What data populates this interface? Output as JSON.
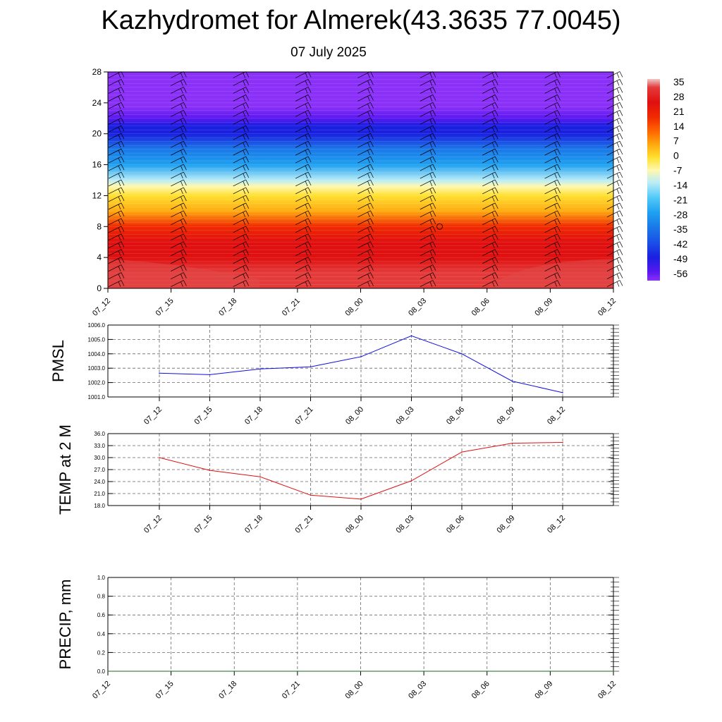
{
  "title": "Kazhydromet for Almerek(43.3635 77.0045)",
  "date": "07 July 2025",
  "colors": {
    "pmsl_line": "#1010e0",
    "temp_line": "#e01010",
    "precip_line": "#1a6b1a",
    "grid": "#666666"
  },
  "chart_data": [
    {
      "type": "heatmap",
      "name": "upper-air-temperature",
      "x_ticks": [
        "07_12",
        "07_15",
        "07_18",
        "07_21",
        "08_00",
        "08_03",
        "08_06",
        "08_09",
        "08_12"
      ],
      "y_ticks": [
        0,
        4,
        8,
        12,
        16,
        20,
        24,
        28
      ],
      "ylim": [
        0,
        28
      ],
      "colorbar_labels": [
        35,
        28,
        21,
        14,
        7,
        0,
        -7,
        -14,
        -21,
        -28,
        -35,
        -42,
        -49,
        -56
      ],
      "color_stops": [
        {
          "v": 35,
          "c": "#f0c8c8"
        },
        {
          "v": 31,
          "c": "#e43a3a"
        },
        {
          "v": 24,
          "c": "#e01010"
        },
        {
          "v": 17,
          "c": "#f02a00"
        },
        {
          "v": 10,
          "c": "#ff6a00"
        },
        {
          "v": 4,
          "c": "#ffaa10"
        },
        {
          "v": -2,
          "c": "#ffe030"
        },
        {
          "v": -8,
          "c": "#fff8b0"
        },
        {
          "v": -14,
          "c": "#b8ecf8"
        },
        {
          "v": -21,
          "c": "#50c8f8"
        },
        {
          "v": -28,
          "c": "#1ea0f0"
        },
        {
          "v": -35,
          "c": "#1a78e8"
        },
        {
          "v": -42,
          "c": "#1a50e8"
        },
        {
          "v": -49,
          "c": "#1a20e0"
        },
        {
          "v": -56,
          "c": "#5a18f0"
        },
        {
          "v": -60,
          "c": "#8a30f8"
        }
      ],
      "profile": [
        {
          "h": 0,
          "t": 33
        },
        {
          "h": 2,
          "t": 29
        },
        {
          "h": 4,
          "t": 25
        },
        {
          "h": 6,
          "t": 21
        },
        {
          "h": 8,
          "t": 15
        },
        {
          "h": 10,
          "t": 7
        },
        {
          "h": 12,
          "t": 0
        },
        {
          "h": 13.2,
          "t": -8
        },
        {
          "h": 14,
          "t": -14
        },
        {
          "h": 16,
          "t": -26
        },
        {
          "h": 18,
          "t": -35
        },
        {
          "h": 20,
          "t": -46
        },
        {
          "h": 21,
          "t": -52
        },
        {
          "h": 22,
          "t": -56
        },
        {
          "h": 23.5,
          "t": -58
        },
        {
          "h": 28,
          "t": -60
        }
      ]
    },
    {
      "type": "line",
      "name": "pmsl",
      "ylabel": "PMSL",
      "categories": [
        "07_12",
        "07_15",
        "07_18",
        "07_21",
        "08_00",
        "08_03",
        "08_06",
        "08_09",
        "08_12"
      ],
      "values": [
        1002.65,
        1002.55,
        1002.95,
        1003.1,
        1003.8,
        1005.25,
        1004.0,
        1002.1,
        1001.3
      ],
      "ylim": [
        1001.0,
        1006.0
      ],
      "y_ticks": [
        "1001.0",
        "1002.0",
        "1003.0",
        "1004.0",
        "1005.0",
        "1006.0"
      ]
    },
    {
      "type": "line",
      "name": "temp-2m",
      "ylabel": "TEMP at 2 M",
      "categories": [
        "07_12",
        "07_15",
        "07_18",
        "07_21",
        "08_00",
        "08_03",
        "08_06",
        "08_09",
        "08_12"
      ],
      "values": [
        30.0,
        26.8,
        25.2,
        20.6,
        19.6,
        24.2,
        31.4,
        33.6,
        33.8
      ],
      "ylim": [
        18.0,
        36.0
      ],
      "y_ticks": [
        "18.0",
        "21.0",
        "24.0",
        "27.0",
        "30.0",
        "33.0",
        "36.0"
      ]
    },
    {
      "type": "line",
      "name": "precip",
      "ylabel": "PRECIP, mm",
      "categories": [
        "07_12",
        "07_15",
        "07_18",
        "07_21",
        "08_00",
        "08_03",
        "08_06",
        "08_09",
        "08_12"
      ],
      "values": [
        0,
        0,
        0,
        0,
        0,
        0,
        0,
        0,
        0
      ],
      "ylim": [
        0.0,
        1.0
      ],
      "y_ticks": [
        "0.0",
        "0.2",
        "0.4",
        "0.6",
        "0.8",
        "1.0"
      ]
    }
  ]
}
